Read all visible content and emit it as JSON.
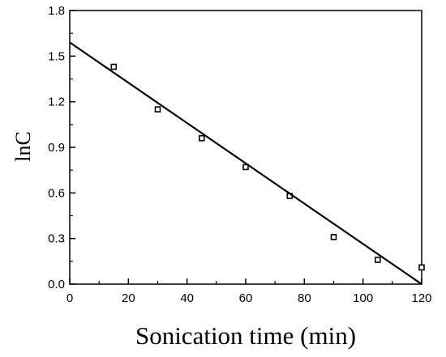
{
  "chart_data": {
    "type": "scatter",
    "title": "",
    "xlabel": "Sonication time (min)",
    "ylabel": "lnC",
    "xlim": [
      0,
      120
    ],
    "ylim": [
      0.0,
      1.8
    ],
    "xticks": [
      0,
      20,
      40,
      60,
      80,
      100,
      120
    ],
    "yticks": [
      0.0,
      0.3,
      0.6,
      0.9,
      1.2,
      1.5,
      1.8
    ],
    "xtick_labels": [
      "0",
      "20",
      "40",
      "60",
      "80",
      "100",
      "120"
    ],
    "ytick_labels": [
      "0.0",
      "0.3",
      "0.6",
      "0.9",
      "1.2",
      "1.5",
      "1.8"
    ],
    "grid": false,
    "legend": "none",
    "series": [
      {
        "kind": "points",
        "x": [
          15,
          30,
          45,
          60,
          75,
          90,
          105,
          120
        ],
        "y": [
          1.43,
          1.15,
          0.96,
          0.77,
          0.58,
          0.31,
          0.16,
          0.11
        ],
        "color": "#000000"
      },
      {
        "kind": "line",
        "x": [
          0,
          40,
          80,
          120
        ],
        "y": [
          1.59,
          1.06,
          0.53,
          0.0
        ],
        "color": "#000000"
      }
    ]
  }
}
